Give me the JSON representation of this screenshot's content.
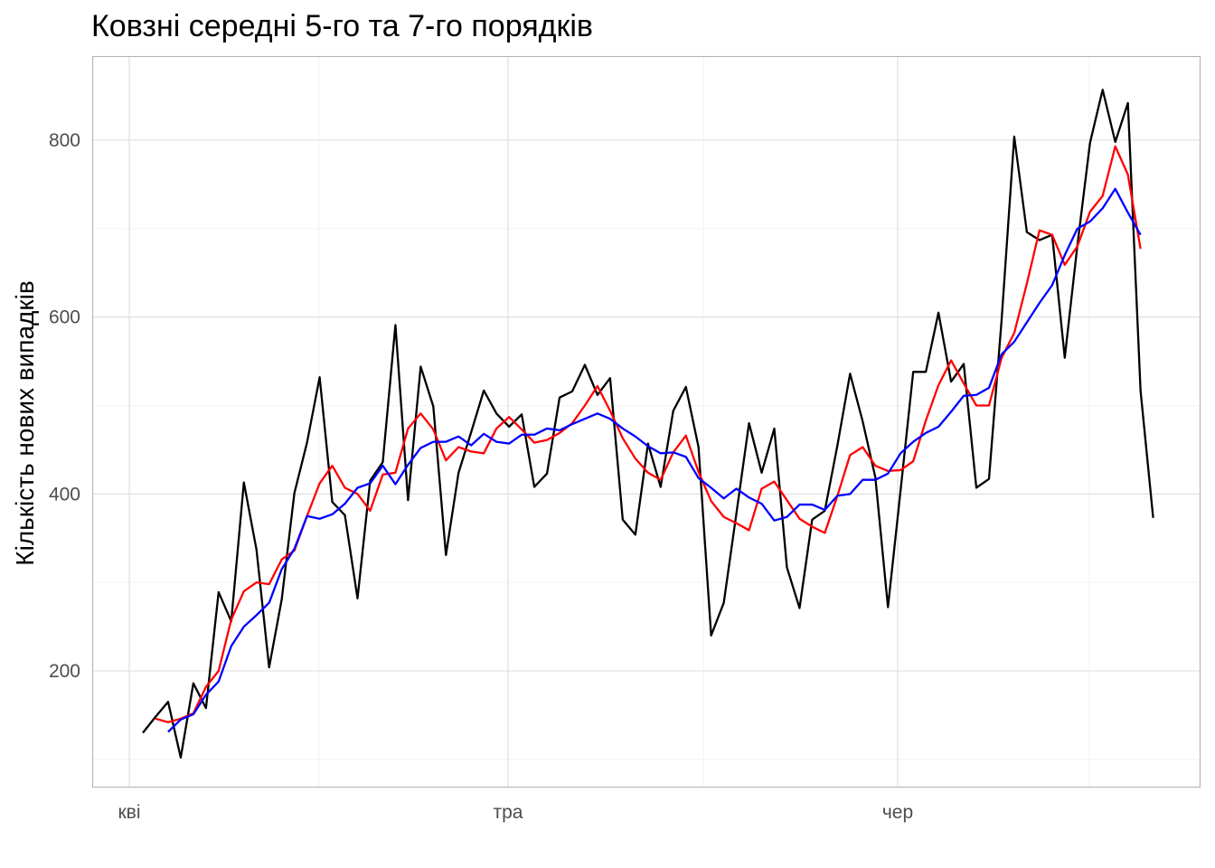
{
  "chart_data": {
    "type": "line",
    "title": "Ковзні середні 5-го та 7-го порядків",
    "xlabel": "",
    "ylabel": "Кількість нових випадків",
    "x_ticks": [
      "кві",
      "тра",
      "чер"
    ],
    "y_ticks": [
      200,
      400,
      600,
      800
    ],
    "ylim": [
      65,
      890
    ],
    "grid": true,
    "legend": "none",
    "series": [
      {
        "color": "#000000",
        "values": [
          130,
          148,
          165,
          102,
          186,
          158,
          289,
          256,
          413,
          337,
          204,
          281,
          401,
          458,
          532,
          391,
          376,
          282,
          415,
          436,
          591,
          393,
          544,
          499,
          331,
          424,
          470,
          517,
          491,
          476,
          490,
          408,
          423,
          509,
          516,
          546,
          512,
          531,
          371,
          354,
          457,
          408,
          494,
          521,
          453,
          240,
          277,
          378,
          480,
          424,
          474,
          317,
          271,
          371,
          381,
          455,
          536,
          482,
          419,
          272,
          404,
          538,
          538,
          605,
          527,
          547,
          407,
          417,
          597,
          804,
          696,
          687,
          693,
          554,
          681,
          797,
          857,
          798,
          842,
          517,
          373
        ]
      },
      {
        "color": "#ff0000",
        "values": [
          null,
          146,
          142,
          146,
          152,
          182,
          200,
          258,
          290,
          300,
          298,
          326,
          336,
          375,
          412,
          432,
          407,
          400,
          381,
          422,
          424,
          474,
          491,
          473,
          438,
          453,
          448,
          446,
          474,
          487,
          473,
          458,
          461,
          469,
          480,
          500,
          522,
          494,
          463,
          440,
          424,
          416,
          447,
          466,
          425,
          392,
          374,
          367,
          359,
          406,
          414,
          393,
          372,
          363,
          356,
          398,
          444,
          453,
          432,
          426,
          427,
          437,
          483,
          523,
          551,
          525,
          500,
          500,
          554,
          582,
          638,
          698,
          693,
          659,
          680,
          719,
          737,
          793,
          761,
          677,
          null
        ]
      },
      {
        "color": "#0000ff",
        "values": [
          null,
          null,
          131,
          145,
          151,
          173,
          188,
          228,
          250,
          263,
          277,
          315,
          338,
          375,
          372,
          377,
          389,
          407,
          412,
          432,
          411,
          433,
          452,
          459,
          459,
          465,
          455,
          468,
          459,
          457,
          467,
          467,
          474,
          472,
          479,
          485,
          491,
          485,
          474,
          465,
          454,
          446,
          447,
          442,
          418,
          407,
          395,
          406,
          396,
          389,
          370,
          374,
          388,
          388,
          382,
          398,
          400,
          416,
          416,
          423,
          446,
          459,
          469,
          476,
          493,
          511,
          512,
          520,
          558,
          572,
          594,
          616,
          636,
          670,
          700,
          708,
          723,
          745,
          718,
          693,
          null
        ]
      }
    ]
  }
}
